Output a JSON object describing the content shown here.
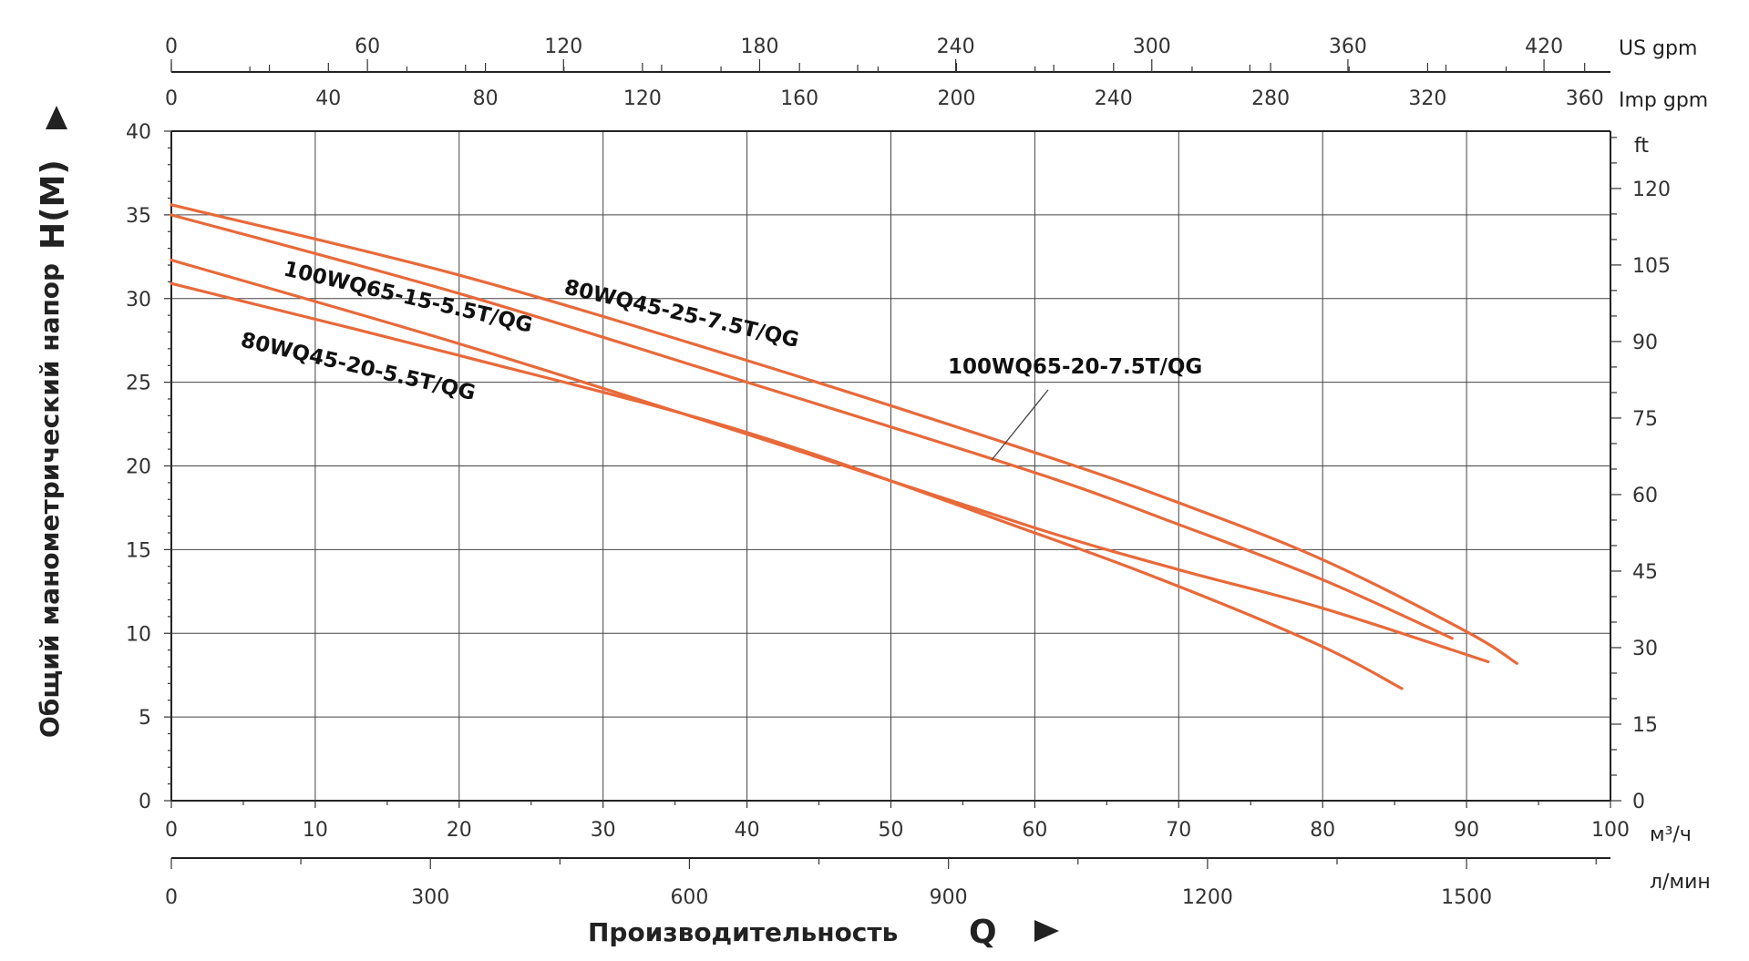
{
  "chart_data": {
    "type": "line",
    "xlabel": "Производительность",
    "xlabel_symbol": "Q",
    "ylabel": "Общий манометрический напор",
    "ylabel_symbol": "H(M)",
    "xlim": [
      0,
      100
    ],
    "ylim": [
      0,
      40
    ],
    "x_unit": "м³/ч",
    "y_unit": "",
    "grid": true,
    "x_ticks": [
      "0",
      "10",
      "20",
      "30",
      "40",
      "50",
      "60",
      "70",
      "80",
      "90",
      "100"
    ],
    "y_ticks": [
      "0",
      "5",
      "10",
      "15",
      "20",
      "25",
      "30",
      "35",
      "40"
    ],
    "secondary_axes": {
      "lpm": {
        "unit": "л/мин",
        "ticks": [
          "0",
          "300",
          "600",
          "900",
          "1200",
          "1500"
        ],
        "values": [
          0,
          300,
          600,
          900,
          1200,
          1500
        ]
      },
      "us_gpm": {
        "unit": "US gpm",
        "ticks": [
          "0",
          "60",
          "120",
          "180",
          "240",
          "300",
          "360",
          "420"
        ],
        "values": [
          0,
          60,
          120,
          180,
          240,
          300,
          360,
          420
        ]
      },
      "imp_gpm": {
        "unit": "Imp gpm",
        "ticks": [
          "0",
          "40",
          "80",
          "120",
          "160",
          "200",
          "240",
          "280",
          "320",
          "360"
        ],
        "values": [
          0,
          40,
          80,
          120,
          160,
          200,
          240,
          280,
          320,
          360
        ]
      },
      "ft": {
        "unit": "ft",
        "ticks": [
          "0",
          "15",
          "30",
          "45",
          "60",
          "75",
          "90",
          "105",
          "120"
        ],
        "values": [
          0,
          15,
          30,
          45,
          60,
          75,
          90,
          105,
          120
        ]
      }
    },
    "series": [
      {
        "name": "100WQ65-20-7.5T/QG",
        "x": [
          0,
          20,
          40,
          60,
          70,
          80,
          90,
          93.5
        ],
        "y": [
          35.6,
          31.4,
          26.3,
          20.8,
          17.8,
          14.4,
          10.1,
          8.2
        ]
      },
      {
        "name": "80WQ45-25-7.5T/QG",
        "x": [
          0,
          20,
          40,
          60,
          70,
          80,
          89
        ],
        "y": [
          35.0,
          30.3,
          25.0,
          19.6,
          16.5,
          13.2,
          9.7
        ]
      },
      {
        "name": "100WQ65-15-5.5T/QG",
        "x": [
          0,
          20,
          40,
          60,
          70,
          80,
          91.5
        ],
        "y": [
          32.3,
          27.3,
          21.9,
          16.3,
          13.8,
          11.5,
          8.3
        ]
      },
      {
        "name": "80WQ45-20-5.5T/QG",
        "x": [
          0,
          20,
          40,
          60,
          70,
          80,
          85.5
        ],
        "y": [
          30.9,
          26.6,
          22.0,
          16.0,
          12.8,
          9.2,
          6.7
        ]
      }
    ],
    "line_color": "#E8693A"
  }
}
